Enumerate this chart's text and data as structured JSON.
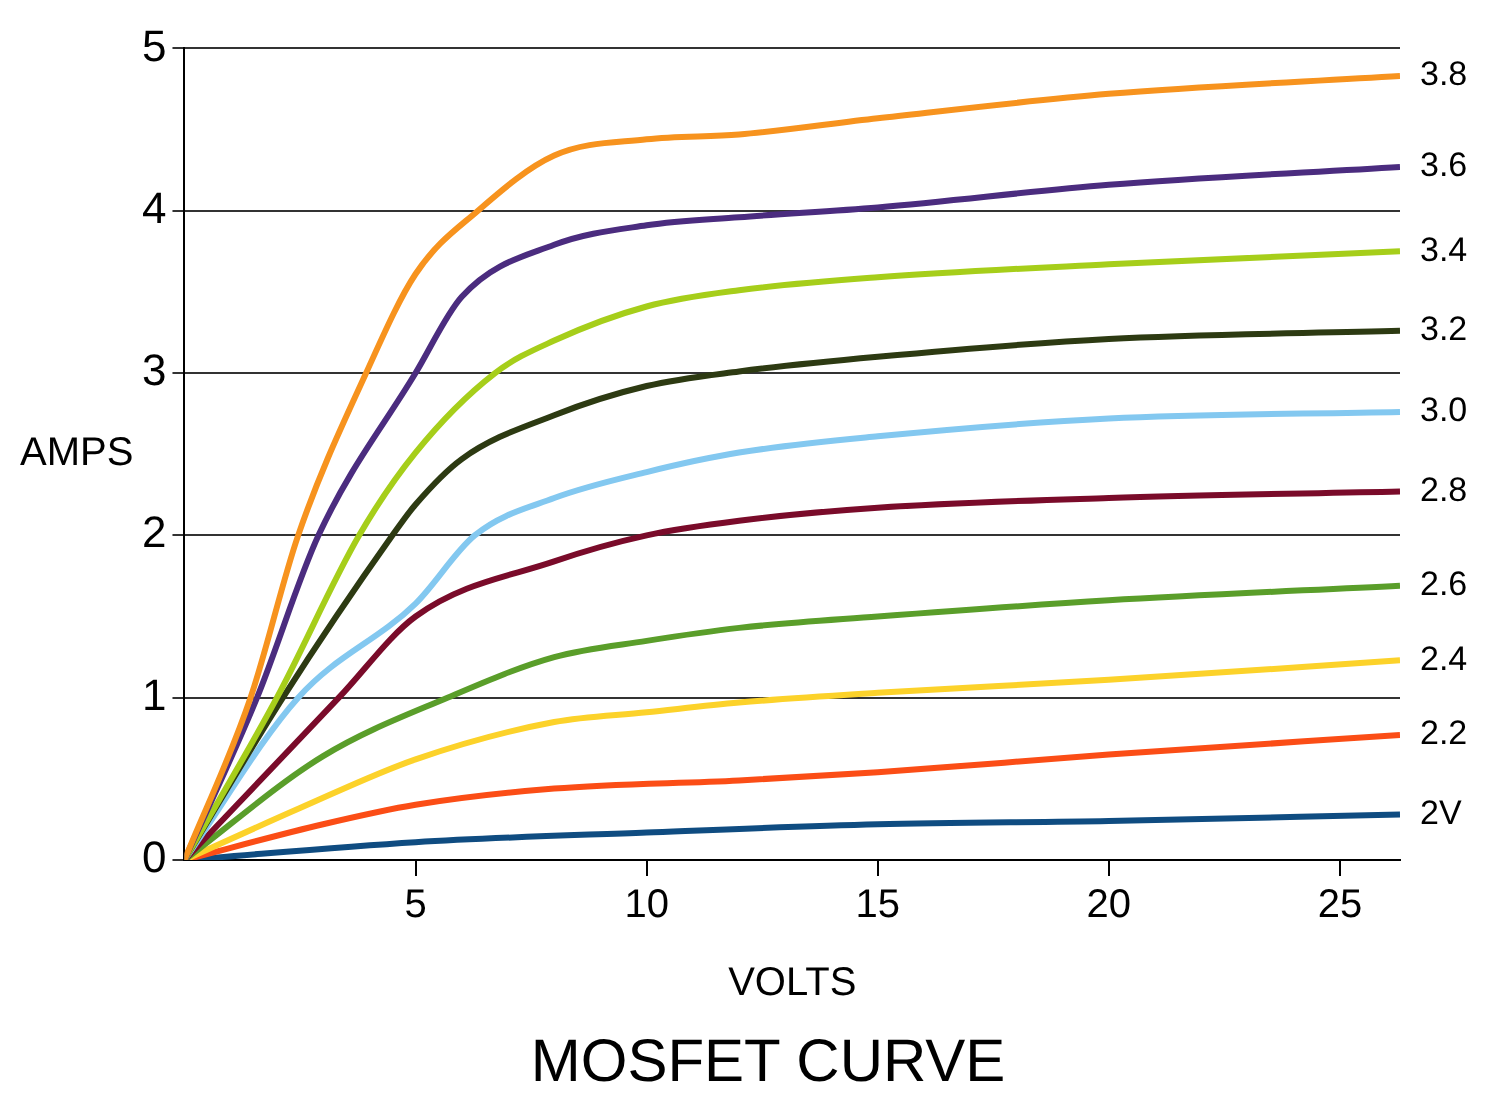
{
  "chart_data": {
    "type": "line",
    "title": "MOSFET CURVE",
    "xlabel": "VOLTS",
    "ylabel": "AMPS",
    "xlim": [
      0,
      26.3
    ],
    "xticks": [
      5,
      10,
      15,
      20,
      25
    ],
    "ylim": [
      0,
      5
    ],
    "yticks": [
      0,
      1,
      2,
      3,
      4,
      5
    ],
    "grid": "y",
    "legend": false,
    "marker": "none",
    "line_style": "solid",
    "series": [
      {
        "name": "3.8",
        "color": "#f7931e",
        "x": [
          0,
          1.43,
          2.46,
          3.93,
          5,
          6.35,
          8,
          10,
          12,
          15,
          20,
          26.3
        ],
        "values": [
          0,
          1,
          2,
          3,
          3.61,
          4,
          4.34,
          4.44,
          4.47,
          4.57,
          4.72,
          4.83
        ]
      },
      {
        "name": "3.6",
        "color": "#4b2c7f",
        "x": [
          0,
          1.57,
          2.9,
          5,
          6,
          8,
          10,
          12,
          15,
          20,
          26.3
        ],
        "values": [
          0,
          1,
          2,
          3,
          3.47,
          3.79,
          3.91,
          3.96,
          4.02,
          4.16,
          4.27
        ]
      },
      {
        "name": "3.4",
        "color": "#a6ce1a",
        "x": [
          0,
          2,
          3.78,
          5,
          6.72,
          8,
          10,
          12,
          15,
          20,
          26.3
        ],
        "values": [
          0,
          1,
          2,
          2.51,
          3,
          3.2,
          3.41,
          3.51,
          3.59,
          3.67,
          3.75
        ]
      },
      {
        "name": "3.2",
        "color": "#2d3a12",
        "x": [
          0,
          2.13,
          4.5,
          5,
          6,
          8,
          10,
          12,
          15,
          20,
          26.3
        ],
        "values": [
          0,
          1,
          2,
          2.19,
          2.47,
          2.74,
          2.92,
          3.01,
          3.1,
          3.21,
          3.26
        ]
      },
      {
        "name": "3.0",
        "color": "#83c8f0",
        "x": [
          0,
          2.46,
          5,
          6.28,
          8,
          10,
          12,
          15,
          20,
          26.3
        ],
        "values": [
          0,
          1,
          1.58,
          2,
          2.23,
          2.39,
          2.51,
          2.61,
          2.72,
          2.76
        ]
      },
      {
        "name": "2.8",
        "color": "#7a0b2a",
        "x": [
          0,
          3.34,
          5,
          8,
          10,
          12,
          15,
          20,
          26.3
        ],
        "values": [
          0,
          1,
          1.5,
          1.84,
          2,
          2.09,
          2.17,
          2.23,
          2.27
        ]
      },
      {
        "name": "2.6",
        "color": "#5a9e2a",
        "x": [
          0,
          3,
          5.69,
          8,
          10,
          12,
          15,
          20,
          26.3
        ],
        "values": [
          0,
          0.64,
          1,
          1.25,
          1.35,
          1.43,
          1.5,
          1.6,
          1.69
        ]
      },
      {
        "name": "2.4",
        "color": "#fcd22a",
        "x": [
          0,
          2.5,
          5,
          8,
          10,
          12,
          15,
          20,
          26.3
        ],
        "values": [
          0,
          0.32,
          0.62,
          0.85,
          0.91,
          0.97,
          1.03,
          1.11,
          1.23
        ]
      },
      {
        "name": "2.2",
        "color": "#fb4d16",
        "x": [
          0,
          3,
          5,
          8,
          12,
          15,
          20,
          26.3
        ],
        "values": [
          0,
          0.22,
          0.34,
          0.44,
          0.49,
          0.54,
          0.65,
          0.77
        ]
      },
      {
        "name": "2V",
        "color": "#0f4c81",
        "x": [
          0,
          5,
          10,
          15,
          20,
          26.3
        ],
        "values": [
          0,
          0.11,
          0.17,
          0.22,
          0.24,
          0.28
        ]
      }
    ]
  }
}
